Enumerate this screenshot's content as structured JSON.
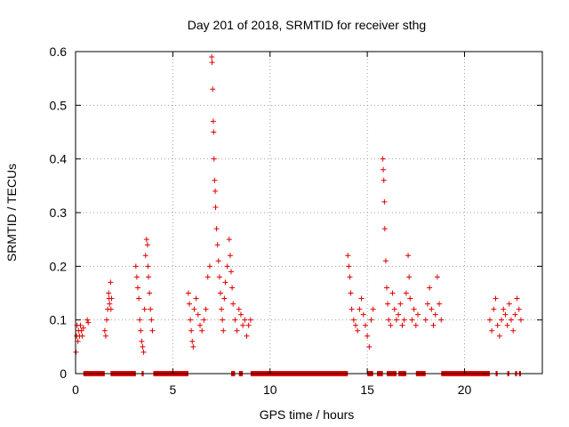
{
  "chart_data": {
    "type": "scatter",
    "title": "Day 201 of 2018, SRMTID for receiver sthg",
    "xlabel": "GPS time / hours",
    "ylabel": "SRMTID / TECUs",
    "xlim": [
      0,
      24
    ],
    "ylim": [
      0,
      0.6
    ],
    "x_ticks": [
      0,
      5,
      10,
      15,
      20
    ],
    "x_tick_labels": [
      "0",
      "5",
      "10",
      "15",
      "20"
    ],
    "y_ticks": [
      0,
      0.1,
      0.2,
      0.3,
      0.4,
      0.5,
      0.6
    ],
    "y_tick_labels": [
      "0",
      "0.1",
      "0.2",
      "0.3",
      "0.4",
      "0.5",
      "0.6"
    ],
    "grid": true,
    "marker": "+",
    "series": [
      {
        "name": "SRMTID",
        "color": "#e00000",
        "points": [
          [
            0.02,
            0.04
          ],
          [
            0.05,
            0.07
          ],
          [
            0.08,
            0.09
          ],
          [
            0.12,
            0.06
          ],
          [
            0.15,
            0.08
          ],
          [
            0.2,
            0.07
          ],
          [
            0.25,
            0.09
          ],
          [
            0.3,
            0.08
          ],
          [
            0.35,
            0.07
          ],
          [
            0.4,
            0.085
          ],
          [
            0.6,
            0.1
          ],
          [
            0.65,
            0.095
          ],
          [
            1.5,
            0.08
          ],
          [
            1.55,
            0.07
          ],
          [
            1.6,
            0.1
          ],
          [
            1.65,
            0.12
          ],
          [
            1.7,
            0.15
          ],
          [
            1.72,
            0.14
          ],
          [
            1.75,
            0.13
          ],
          [
            1.8,
            0.17
          ],
          [
            1.82,
            0.12
          ],
          [
            1.85,
            0.14
          ],
          [
            3.1,
            0.2
          ],
          [
            3.15,
            0.18
          ],
          [
            3.2,
            0.16
          ],
          [
            3.25,
            0.14
          ],
          [
            3.3,
            0.1
          ],
          [
            3.35,
            0.08
          ],
          [
            3.4,
            0.06
          ],
          [
            3.45,
            0.05
          ],
          [
            3.5,
            0.04
          ],
          [
            3.55,
            0.12
          ],
          [
            3.6,
            0.22
          ],
          [
            3.65,
            0.25
          ],
          [
            3.7,
            0.24
          ],
          [
            3.72,
            0.2
          ],
          [
            3.75,
            0.18
          ],
          [
            3.8,
            0.15
          ],
          [
            3.85,
            0.12
          ],
          [
            3.9,
            0.1
          ],
          [
            3.95,
            0.08
          ],
          [
            5.8,
            0.15
          ],
          [
            5.85,
            0.13
          ],
          [
            5.9,
            0.1
          ],
          [
            5.95,
            0.08
          ],
          [
            6.0,
            0.06
          ],
          [
            6.05,
            0.05
          ],
          [
            6.1,
            0.12
          ],
          [
            6.2,
            0.14
          ],
          [
            6.3,
            0.11
          ],
          [
            6.4,
            0.09
          ],
          [
            6.5,
            0.08
          ],
          [
            6.6,
            0.1
          ],
          [
            6.7,
            0.12
          ],
          [
            6.8,
            0.18
          ],
          [
            6.9,
            0.2
          ],
          [
            7.0,
            0.59
          ],
          [
            7.02,
            0.58
          ],
          [
            7.05,
            0.53
          ],
          [
            7.08,
            0.47
          ],
          [
            7.1,
            0.45
          ],
          [
            7.12,
            0.4
          ],
          [
            7.15,
            0.36
          ],
          [
            7.18,
            0.34
          ],
          [
            7.2,
            0.31
          ],
          [
            7.25,
            0.27
          ],
          [
            7.3,
            0.24
          ],
          [
            7.35,
            0.21
          ],
          [
            7.4,
            0.18
          ],
          [
            7.45,
            0.15
          ],
          [
            7.5,
            0.12
          ],
          [
            7.55,
            0.1
          ],
          [
            7.6,
            0.08
          ],
          [
            7.65,
            0.14
          ],
          [
            7.7,
            0.17
          ],
          [
            7.8,
            0.2
          ],
          [
            7.9,
            0.25
          ],
          [
            7.95,
            0.22
          ],
          [
            8.0,
            0.19
          ],
          [
            8.05,
            0.16
          ],
          [
            8.1,
            0.13
          ],
          [
            8.2,
            0.1
          ],
          [
            8.3,
            0.08
          ],
          [
            8.4,
            0.12
          ],
          [
            8.5,
            0.11
          ],
          [
            8.6,
            0.09
          ],
          [
            8.7,
            0.1
          ],
          [
            8.8,
            0.07
          ],
          [
            8.9,
            0.09
          ],
          [
            9.0,
            0.1
          ],
          [
            14.0,
            0.22
          ],
          [
            14.05,
            0.2
          ],
          [
            14.1,
            0.18
          ],
          [
            14.15,
            0.15
          ],
          [
            14.2,
            0.12
          ],
          [
            14.3,
            0.1
          ],
          [
            14.4,
            0.09
          ],
          [
            14.5,
            0.08
          ],
          [
            14.6,
            0.12
          ],
          [
            14.7,
            0.14
          ],
          [
            14.8,
            0.11
          ],
          [
            14.9,
            0.09
          ],
          [
            15.0,
            0.07
          ],
          [
            15.1,
            0.05
          ],
          [
            15.2,
            0.1
          ],
          [
            15.3,
            0.12
          ],
          [
            15.8,
            0.4
          ],
          [
            15.82,
            0.38
          ],
          [
            15.85,
            0.36
          ],
          [
            15.88,
            0.32
          ],
          [
            15.9,
            0.27
          ],
          [
            15.95,
            0.21
          ],
          [
            16.0,
            0.16
          ],
          [
            16.05,
            0.13
          ],
          [
            16.1,
            0.1
          ],
          [
            16.2,
            0.09
          ],
          [
            16.3,
            0.15
          ],
          [
            16.4,
            0.12
          ],
          [
            16.5,
            0.1
          ],
          [
            16.6,
            0.11
          ],
          [
            16.7,
            0.13
          ],
          [
            16.8,
            0.09
          ],
          [
            16.9,
            0.1
          ],
          [
            17.0,
            0.15
          ],
          [
            17.1,
            0.22
          ],
          [
            17.15,
            0.18
          ],
          [
            17.2,
            0.14
          ],
          [
            17.3,
            0.1
          ],
          [
            17.4,
            0.12
          ],
          [
            17.5,
            0.09
          ],
          [
            17.6,
            0.11
          ],
          [
            18.0,
            0.1
          ],
          [
            18.1,
            0.13
          ],
          [
            18.2,
            0.16
          ],
          [
            18.3,
            0.12
          ],
          [
            18.4,
            0.09
          ],
          [
            18.5,
            0.11
          ],
          [
            18.6,
            0.18
          ],
          [
            18.7,
            0.13
          ],
          [
            18.8,
            0.1
          ],
          [
            21.3,
            0.1
          ],
          [
            21.4,
            0.08
          ],
          [
            21.5,
            0.12
          ],
          [
            21.6,
            0.14
          ],
          [
            21.7,
            0.09
          ],
          [
            21.8,
            0.07
          ],
          [
            21.9,
            0.1
          ],
          [
            22.0,
            0.12
          ],
          [
            22.1,
            0.11
          ],
          [
            22.2,
            0.09
          ],
          [
            22.3,
            0.13
          ],
          [
            22.4,
            0.1
          ],
          [
            22.5,
            0.08
          ],
          [
            22.6,
            0.11
          ],
          [
            22.7,
            0.14
          ],
          [
            22.8,
            0.12
          ],
          [
            22.9,
            0.1
          ]
        ]
      }
    ],
    "zero_segments": [
      [
        0.4,
        1.5
      ],
      [
        1.8,
        3.1
      ],
      [
        3.4,
        3.5
      ],
      [
        4.0,
        5.8
      ],
      [
        8.0,
        8.2
      ],
      [
        8.4,
        8.6
      ],
      [
        9.0,
        14.0
      ],
      [
        15.0,
        15.3
      ],
      [
        15.5,
        15.8
      ],
      [
        16.0,
        16.5
      ],
      [
        16.6,
        17.0
      ],
      [
        17.5,
        18.0
      ],
      [
        18.8,
        21.3
      ],
      [
        21.6,
        21.7
      ],
      [
        22.2,
        22.3
      ],
      [
        22.6,
        22.7
      ],
      [
        22.8,
        22.9
      ]
    ]
  }
}
